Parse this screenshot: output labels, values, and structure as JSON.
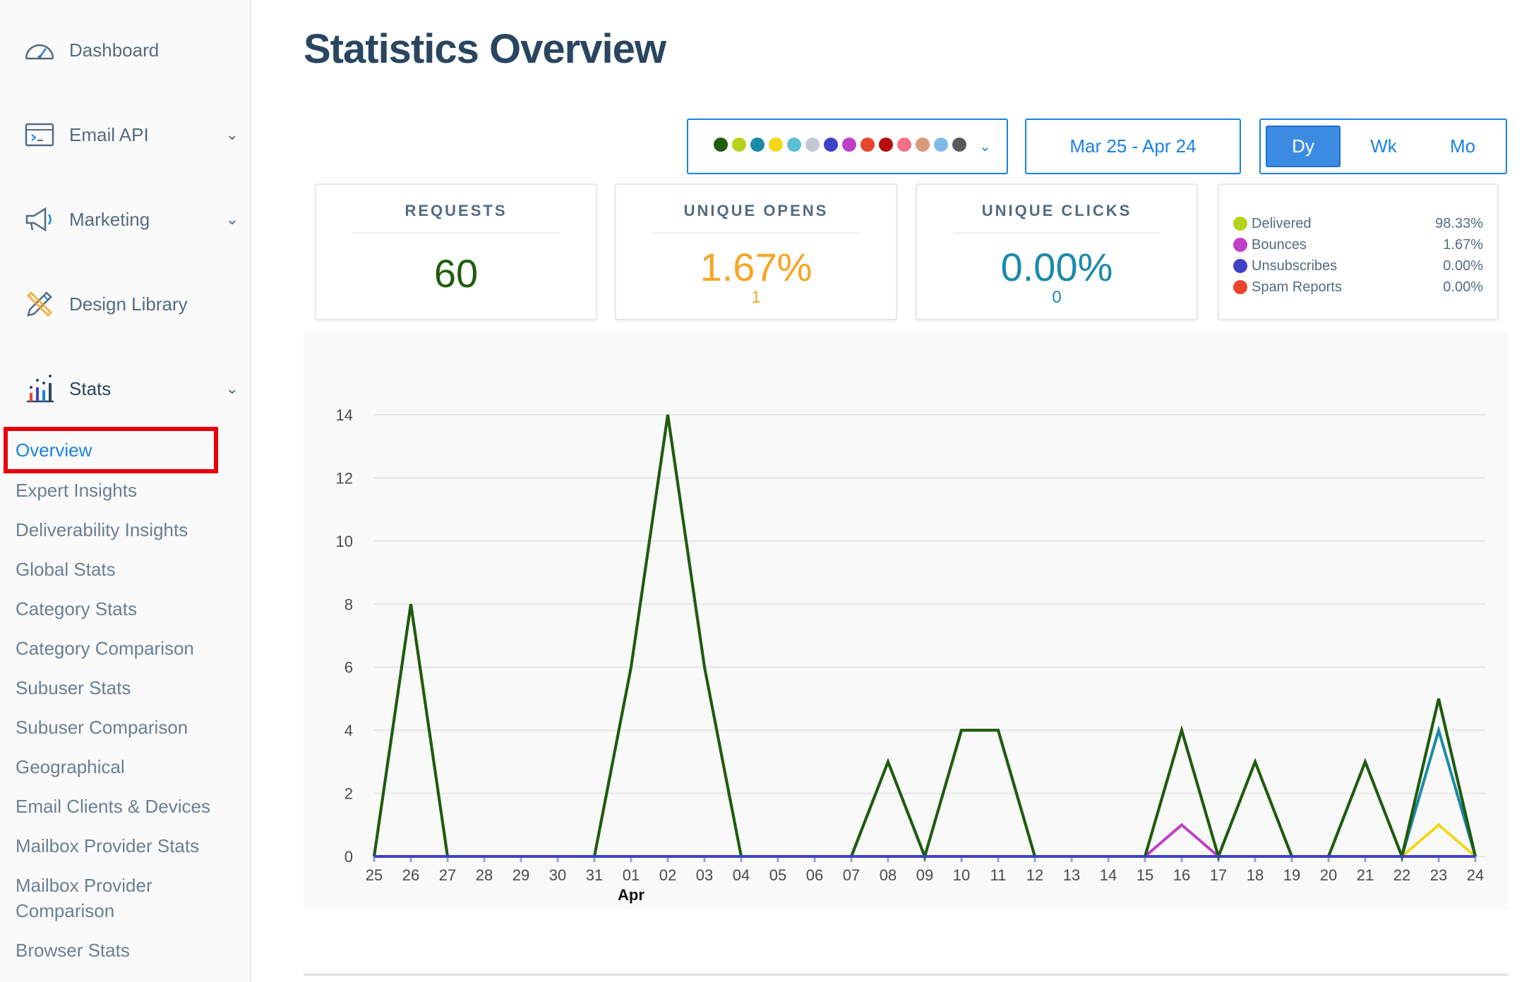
{
  "sidebar": {
    "dashboard": {
      "label": "Dashboard",
      "icon": "speedometer-icon"
    },
    "email_api": {
      "label": "Email API",
      "icon": "terminal-icon"
    },
    "marketing": {
      "label": "Marketing",
      "icon": "megaphone-icon"
    },
    "design_library": {
      "label": "Design Library",
      "icon": "pencil-ruler-icon"
    },
    "stats": {
      "label": "Stats",
      "icon": "bar-chart-icon"
    },
    "stats_items": [
      {
        "label": "Overview",
        "active": true
      },
      {
        "label": "Expert Insights"
      },
      {
        "label": "Deliverability Insights"
      },
      {
        "label": "Global Stats"
      },
      {
        "label": "Category Stats"
      },
      {
        "label": "Category Comparison"
      },
      {
        "label": "Subuser Stats"
      },
      {
        "label": "Subuser Comparison"
      },
      {
        "label": "Geographical"
      },
      {
        "label": "Email Clients & Devices"
      },
      {
        "label": "Mailbox Provider Stats"
      },
      {
        "label": "Mailbox Provider"
      },
      {
        "label": "Comparison"
      },
      {
        "label": "Browser Stats"
      }
    ]
  },
  "page_title": "Statistics Overview",
  "controls": {
    "series_colors": [
      "#1f5c0e",
      "#b5d31a",
      "#1a8aa8",
      "#f5d816",
      "#5bc0d4",
      "#c3c9d1",
      "#3e43c6",
      "#c03fc9",
      "#e8452e",
      "#b50f0f",
      "#f07085",
      "#d99a7c",
      "#7fb9e8",
      "#5a5a5a"
    ],
    "date_range": "Mar 25 - Apr 24",
    "periods": [
      {
        "label": "Dy",
        "active": true
      },
      {
        "label": "Wk",
        "active": false
      },
      {
        "label": "Mo",
        "active": false
      }
    ]
  },
  "cards": {
    "requests": {
      "title": "REQUESTS",
      "value": "60",
      "color": "#1f5c0e"
    },
    "unique_opens": {
      "title": "UNIQUE OPENS",
      "value": "1.67%",
      "count": "1",
      "color": "#f5a623"
    },
    "unique_clicks": {
      "title": "UNIQUE CLICKS",
      "value": "0.00%",
      "count": "0",
      "color": "#1a8aa8"
    }
  },
  "legend": [
    {
      "label": "Delivered",
      "pct": "98.33%",
      "color": "#b5d31a"
    },
    {
      "label": "Bounces",
      "pct": "1.67%",
      "color": "#c03fc9"
    },
    {
      "label": "Unsubscribes",
      "pct": "0.00%",
      "color": "#3e43c6"
    },
    {
      "label": "Spam Reports",
      "pct": "0.00%",
      "color": "#e8452e"
    }
  ],
  "chart_data": {
    "type": "line",
    "x": [
      "25",
      "26",
      "27",
      "28",
      "29",
      "30",
      "31",
      "01",
      "02",
      "03",
      "04",
      "05",
      "06",
      "07",
      "08",
      "09",
      "10",
      "11",
      "12",
      "13",
      "14",
      "15",
      "16",
      "17",
      "18",
      "19",
      "20",
      "21",
      "22",
      "23",
      "24"
    ],
    "month_label": {
      "at": "01",
      "text": "Apr"
    },
    "ylim": [
      0,
      14
    ],
    "yticks": [
      0,
      2,
      4,
      6,
      8,
      10,
      12,
      14
    ],
    "series": [
      {
        "color": "#1f5c0e",
        "values": [
          0,
          8,
          0,
          0,
          0,
          0,
          0,
          6,
          14,
          6,
          0,
          0,
          0,
          0,
          3,
          0,
          4,
          4,
          0,
          0,
          0,
          0,
          4,
          0,
          3,
          0,
          0,
          3,
          0,
          5,
          0
        ]
      },
      {
        "color": "#1a8aa8",
        "values": [
          0,
          0,
          0,
          0,
          0,
          0,
          0,
          0,
          0,
          0,
          0,
          0,
          0,
          0,
          0,
          0,
          0,
          0,
          0,
          0,
          0,
          0,
          0,
          0,
          0,
          0,
          0,
          0,
          0,
          4,
          0
        ]
      },
      {
        "color": "#f5d816",
        "values": [
          0,
          0,
          0,
          0,
          0,
          0,
          0,
          0,
          0,
          0,
          0,
          0,
          0,
          0,
          0,
          0,
          0,
          0,
          0,
          0,
          0,
          0,
          0,
          0,
          0,
          0,
          0,
          0,
          0,
          1,
          0
        ]
      },
      {
        "color": "#c03fc9",
        "values": [
          0,
          0,
          0,
          0,
          0,
          0,
          0,
          0,
          0,
          0,
          0,
          0,
          0,
          0,
          0,
          0,
          0,
          0,
          0,
          0,
          0,
          0,
          1,
          0,
          0,
          0,
          0,
          0,
          0,
          0,
          0
        ]
      },
      {
        "color": "#3e43c6",
        "values": [
          0,
          0,
          0,
          0,
          0,
          0,
          0,
          0,
          0,
          0,
          0,
          0,
          0,
          0,
          0,
          0,
          0,
          0,
          0,
          0,
          0,
          0,
          0,
          0,
          0,
          0,
          0,
          0,
          0,
          0,
          0
        ]
      }
    ]
  }
}
